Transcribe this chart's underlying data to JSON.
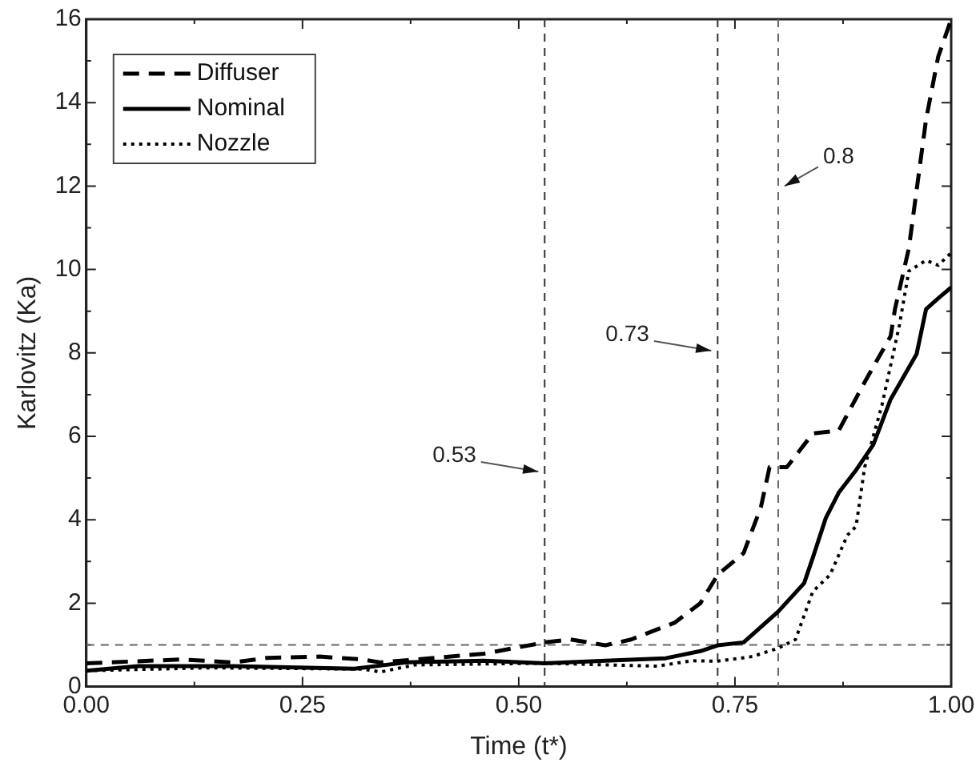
{
  "chart_data": {
    "type": "line",
    "xlabel": "Time (t*)",
    "ylabel": "Karlovitz (Ka)",
    "xlim": [
      0,
      1
    ],
    "ylim": [
      0,
      16
    ],
    "xticks": [
      {
        "value": 0,
        "label": "0.00"
      },
      {
        "value": 0.125,
        "label": null
      },
      {
        "value": 0.25,
        "label": "0.25"
      },
      {
        "value": 0.375,
        "label": null
      },
      {
        "value": 0.5,
        "label": "0.50"
      },
      {
        "value": 0.625,
        "label": null
      },
      {
        "value": 0.75,
        "label": "0.75"
      },
      {
        "value": 0.875,
        "label": null
      },
      {
        "value": 1,
        "label": "1.00"
      }
    ],
    "yticks": [
      0,
      {
        "value": 1,
        "label": null
      },
      2,
      {
        "value": 3,
        "label": null
      },
      4,
      {
        "value": 5,
        "label": null
      },
      6,
      {
        "value": 7,
        "label": null
      },
      8,
      {
        "value": 9,
        "label": null
      },
      10,
      {
        "value": 11,
        "label": null
      },
      12,
      {
        "value": 13,
        "label": null
      },
      14,
      {
        "value": 15,
        "label": null
      },
      16
    ],
    "grid": false,
    "legend": "top left",
    "marker": "none",
    "series": [
      {
        "name": "Diffuser",
        "color": "#000000",
        "line_style": "dashed",
        "x": [
          0,
          0.11,
          0.17,
          0.21,
          0.27,
          0.32,
          0.34,
          0.38,
          0.46,
          0.53,
          0.56,
          0.6,
          0.63,
          0.68,
          0.71,
          0.73,
          0.76,
          0.78,
          0.79,
          0.81,
          0.84,
          0.87,
          0.9,
          0.93,
          0.935,
          0.951,
          0.971,
          0.985,
          1
        ],
        "values": [
          0.56,
          0.65,
          0.58,
          0.69,
          0.72,
          0.65,
          0.58,
          0.65,
          0.79,
          1.06,
          1.13,
          0.99,
          1.13,
          1.53,
          2.0,
          2.68,
          3.2,
          4.3,
          5.26,
          5.26,
          6.07,
          6.14,
          7.3,
          8.4,
          9.05,
          10.5,
          13.6,
          15.1,
          16
        ]
      },
      {
        "name": "Nominal",
        "color": "#000000",
        "line_style": "solid",
        "x": [
          0,
          0.06,
          0.17,
          0.31,
          0.37,
          0.46,
          0.53,
          0.6,
          0.67,
          0.71,
          0.73,
          0.76,
          0.8,
          0.83,
          0.84,
          0.855,
          0.87,
          0.89,
          0.91,
          0.93,
          0.96,
          0.971,
          0.985,
          1
        ],
        "values": [
          0.38,
          0.49,
          0.49,
          0.43,
          0.58,
          0.62,
          0.56,
          0.62,
          0.68,
          0.85,
          0.99,
          1.06,
          1.8,
          2.48,
          3.09,
          4.04,
          4.65,
          5.19,
          5.8,
          6.89,
          7.97,
          9.05,
          9.31,
          9.57
        ]
      },
      {
        "name": "Nozzle",
        "color": "#000000",
        "line_style": "dotted",
        "x": [
          0,
          0.14,
          0.32,
          0.34,
          0.38,
          0.53,
          0.66,
          0.7,
          0.73,
          0.77,
          0.8,
          0.82,
          0.84,
          0.86,
          0.88,
          0.89,
          0.9,
          0.92,
          0.94,
          0.951,
          0.971,
          0.985,
          1
        ],
        "values": [
          0.38,
          0.45,
          0.42,
          0.35,
          0.52,
          0.56,
          0.49,
          0.62,
          0.61,
          0.72,
          0.92,
          1.13,
          2.28,
          2.68,
          3.63,
          3.84,
          5.26,
          6.75,
          8.65,
          9.96,
          10.22,
          10.1,
          10.4
        ]
      }
    ],
    "ref_lines": [
      {
        "axis": "x",
        "value": 0.53,
        "label": "0.53",
        "line_style": "dashed",
        "color": "#333333"
      },
      {
        "axis": "x",
        "value": 0.73,
        "label": "0.73",
        "line_style": "dashed",
        "color": "#333333"
      },
      {
        "axis": "x",
        "value": 0.8,
        "label": "0.8",
        "line_style": "dashed",
        "color": "#666666"
      },
      {
        "axis": "y",
        "value": 1,
        "line_style": "dashed",
        "color": "#666666"
      }
    ]
  }
}
